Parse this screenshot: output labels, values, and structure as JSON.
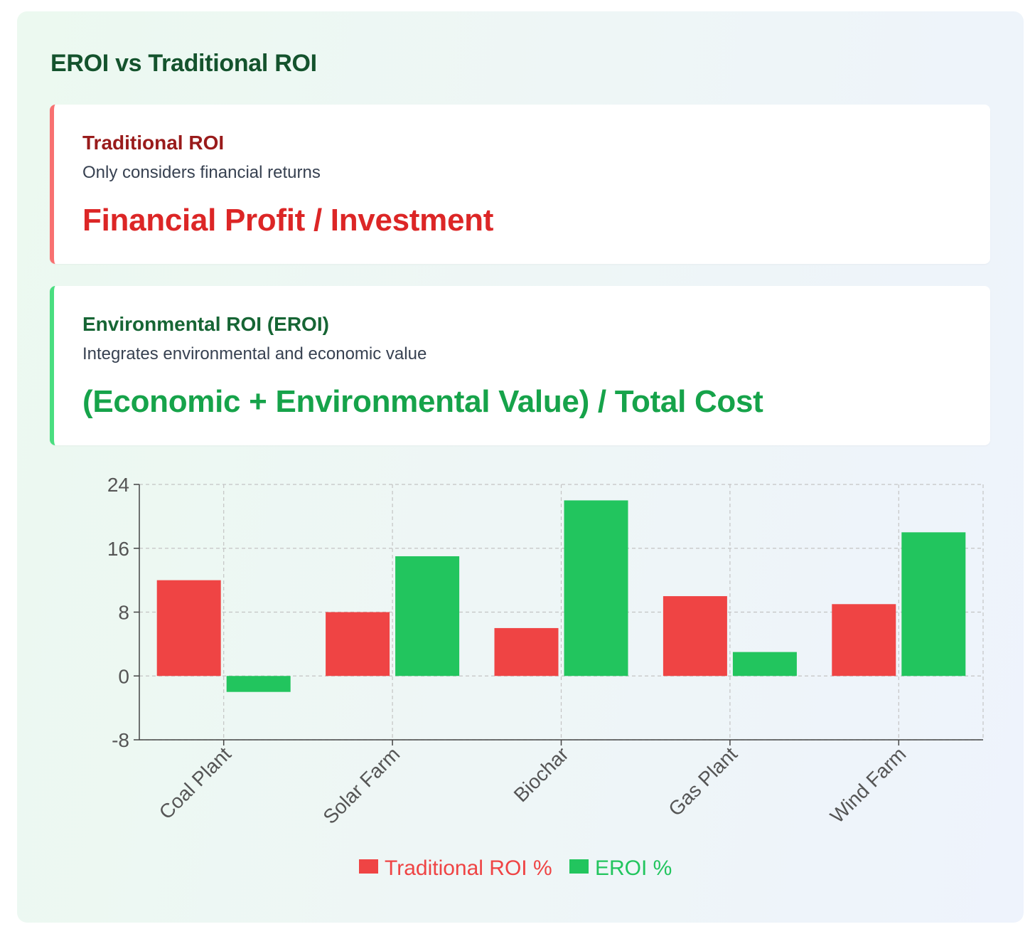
{
  "title": "EROI vs Traditional ROI",
  "cards": {
    "traditional": {
      "title": "Traditional ROI",
      "description": "Only considers financial returns",
      "formula": "Financial Profit / Investment",
      "accent": "#f87171"
    },
    "eroi": {
      "title": "Environmental ROI (EROI)",
      "description": "Integrates environmental and economic value",
      "formula": "(Economic + Environmental Value) / Total Cost",
      "accent": "#4ade80"
    }
  },
  "chart_data": {
    "type": "bar",
    "categories": [
      "Coal Plant",
      "Solar Farm",
      "Biochar",
      "Gas Plant",
      "Wind Farm"
    ],
    "series": [
      {
        "name": "Traditional ROI %",
        "color": "#ef4444",
        "values": [
          12,
          8,
          6,
          10,
          9
        ]
      },
      {
        "name": "EROI %",
        "color": "#22c55e",
        "values": [
          -2,
          15,
          22,
          3,
          18
        ]
      }
    ],
    "ylim": [
      -8,
      24
    ],
    "yticks": [
      -8,
      0,
      8,
      16,
      24
    ],
    "grid": true,
    "legend": "bottom-center"
  }
}
